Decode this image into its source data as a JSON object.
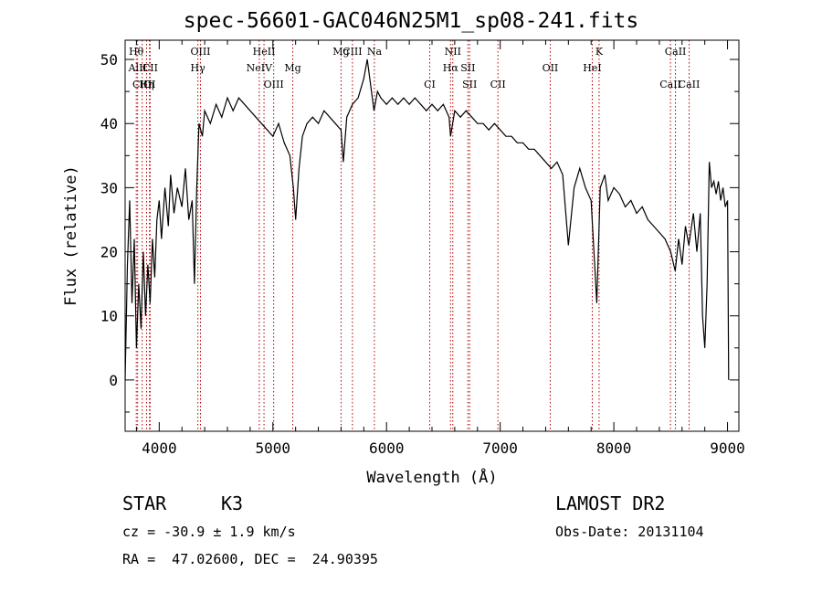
{
  "chart_data": {
    "type": "line",
    "title": "spec-56601-GAC046N25M1_sp08-241.fits",
    "xlabel": "Wavelength (Å)",
    "ylabel": "Flux (relative)",
    "xlim": [
      3700,
      9100
    ],
    "ylim": [
      -8,
      53
    ],
    "xticks": [
      4000,
      5000,
      6000,
      7000,
      8000,
      9000
    ],
    "yticks": [
      0,
      10,
      20,
      30,
      40,
      50
    ],
    "grid": false,
    "series": [
      {
        "points": [
          [
            3700,
            0
          ],
          [
            3720,
            18
          ],
          [
            3740,
            28
          ],
          [
            3760,
            12
          ],
          [
            3780,
            22
          ],
          [
            3800,
            5
          ],
          [
            3820,
            15
          ],
          [
            3840,
            8
          ],
          [
            3860,
            20
          ],
          [
            3880,
            10
          ],
          [
            3900,
            18
          ],
          [
            3920,
            12
          ],
          [
            3940,
            22
          ],
          [
            3960,
            16
          ],
          [
            3980,
            25
          ],
          [
            4000,
            28
          ],
          [
            4020,
            22
          ],
          [
            4050,
            30
          ],
          [
            4080,
            24
          ],
          [
            4100,
            32
          ],
          [
            4130,
            26
          ],
          [
            4160,
            30
          ],
          [
            4200,
            27
          ],
          [
            4230,
            33
          ],
          [
            4260,
            25
          ],
          [
            4290,
            28
          ],
          [
            4310,
            15
          ],
          [
            4330,
            30
          ],
          [
            4350,
            40
          ],
          [
            4380,
            38
          ],
          [
            4400,
            42
          ],
          [
            4450,
            40
          ],
          [
            4500,
            43
          ],
          [
            4550,
            41
          ],
          [
            4600,
            44
          ],
          [
            4650,
            42
          ],
          [
            4700,
            44
          ],
          [
            4750,
            43
          ],
          [
            4800,
            42
          ],
          [
            4850,
            41
          ],
          [
            4900,
            40
          ],
          [
            4950,
            39
          ],
          [
            5000,
            38
          ],
          [
            5050,
            40
          ],
          [
            5100,
            37
          ],
          [
            5150,
            35
          ],
          [
            5180,
            30
          ],
          [
            5200,
            25
          ],
          [
            5230,
            33
          ],
          [
            5260,
            38
          ],
          [
            5300,
            40
          ],
          [
            5350,
            41
          ],
          [
            5400,
            40
          ],
          [
            5450,
            42
          ],
          [
            5500,
            41
          ],
          [
            5550,
            40
          ],
          [
            5600,
            39
          ],
          [
            5620,
            34
          ],
          [
            5650,
            41
          ],
          [
            5700,
            43
          ],
          [
            5750,
            44
          ],
          [
            5800,
            47
          ],
          [
            5830,
            50
          ],
          [
            5860,
            46
          ],
          [
            5890,
            42
          ],
          [
            5920,
            45
          ],
          [
            5950,
            44
          ],
          [
            6000,
            43
          ],
          [
            6050,
            44
          ],
          [
            6100,
            43
          ],
          [
            6150,
            44
          ],
          [
            6200,
            43
          ],
          [
            6250,
            44
          ],
          [
            6300,
            43
          ],
          [
            6350,
            42
          ],
          [
            6400,
            43
          ],
          [
            6450,
            42
          ],
          [
            6500,
            43
          ],
          [
            6550,
            41
          ],
          [
            6563,
            38
          ],
          [
            6600,
            42
          ],
          [
            6650,
            41
          ],
          [
            6700,
            42
          ],
          [
            6750,
            41
          ],
          [
            6800,
            40
          ],
          [
            6850,
            40
          ],
          [
            6900,
            39
          ],
          [
            6950,
            40
          ],
          [
            7000,
            39
          ],
          [
            7050,
            38
          ],
          [
            7100,
            38
          ],
          [
            7150,
            37
          ],
          [
            7200,
            37
          ],
          [
            7250,
            36
          ],
          [
            7300,
            36
          ],
          [
            7350,
            35
          ],
          [
            7400,
            34
          ],
          [
            7450,
            33
          ],
          [
            7500,
            34
          ],
          [
            7550,
            32
          ],
          [
            7600,
            21
          ],
          [
            7650,
            30
          ],
          [
            7700,
            33
          ],
          [
            7750,
            30
          ],
          [
            7800,
            28
          ],
          [
            7850,
            12
          ],
          [
            7880,
            30
          ],
          [
            7920,
            32
          ],
          [
            7950,
            28
          ],
          [
            8000,
            30
          ],
          [
            8050,
            29
          ],
          [
            8100,
            27
          ],
          [
            8150,
            28
          ],
          [
            8200,
            26
          ],
          [
            8250,
            27
          ],
          [
            8300,
            25
          ],
          [
            8350,
            24
          ],
          [
            8400,
            23
          ],
          [
            8450,
            22
          ],
          [
            8500,
            20
          ],
          [
            8540,
            17
          ],
          [
            8570,
            22
          ],
          [
            8600,
            18
          ],
          [
            8630,
            24
          ],
          [
            8660,
            21
          ],
          [
            8700,
            26
          ],
          [
            8730,
            20
          ],
          [
            8760,
            26
          ],
          [
            8780,
            10
          ],
          [
            8800,
            5
          ],
          [
            8820,
            15
          ],
          [
            8840,
            34
          ],
          [
            8860,
            30
          ],
          [
            8880,
            31
          ],
          [
            8900,
            29
          ],
          [
            8920,
            31
          ],
          [
            8940,
            28
          ],
          [
            8960,
            30
          ],
          [
            8980,
            27
          ],
          [
            9000,
            28
          ],
          [
            9010,
            0
          ]
        ]
      }
    ],
    "lines": [
      {
        "label": "Hθ",
        "x": 3798,
        "row": 1
      },
      {
        "label": "AlII",
        "x": 3810,
        "row": 2
      },
      {
        "label": "CIII",
        "x": 3850,
        "row": 3
      },
      {
        "label": "Hη",
        "x": 3889,
        "row": 3
      },
      {
        "label": "OI",
        "x": 3914,
        "row": 3
      },
      {
        "label": "CII",
        "x": 3920,
        "row": 2
      },
      {
        "label": "OIII",
        "x": 4363,
        "row": 1
      },
      {
        "label": "Hγ",
        "x": 4340,
        "row": 2
      },
      {
        "label": "HeII",
        "x": 4922,
        "row": 1
      },
      {
        "label": "NeIV",
        "x": 4880,
        "row": 2
      },
      {
        "label": "OIII",
        "x": 5007,
        "row": 3
      },
      {
        "label": "Mg",
        "x": 5175,
        "row": 2
      },
      {
        "label": "Mg",
        "x": 5600,
        "row": 1
      },
      {
        "label": "CIII",
        "x": 5700,
        "row": 1
      },
      {
        "label": "Na",
        "x": 5893,
        "row": 1
      },
      {
        "label": "CI",
        "x": 6380,
        "row": 3
      },
      {
        "label": "NII",
        "x": 6583,
        "row": 1
      },
      {
        "label": "Hα",
        "x": 6563,
        "row": 2
      },
      {
        "label": "SII",
        "x": 6716,
        "row": 2
      },
      {
        "label": "SII",
        "x": 6731,
        "row": 3
      },
      {
        "label": "CII",
        "x": 6980,
        "row": 3
      },
      {
        "label": "OII",
        "x": 7440,
        "row": 2
      },
      {
        "label": "HeI",
        "x": 7810,
        "row": 2
      },
      {
        "label": "K",
        "x": 7870,
        "row": 1
      },
      {
        "label": "CaII",
        "x": 8542,
        "row": 1
      },
      {
        "label": "CaII",
        "x": 8498,
        "row": 3
      },
      {
        "label": "CaII",
        "x": 8662,
        "row": 3
      }
    ]
  },
  "footer": {
    "class_label": "STAR",
    "subclass_label": "K3",
    "survey": "LAMOST DR2",
    "redshift_text": "cz = -30.9 ± 1.9 km/s",
    "obs_date": "Obs-Date: 20131104",
    "coords": "RA =  47.02600, DEC =  24.90395"
  },
  "colors": {
    "line": "#000000",
    "marker_lines": "#b00000",
    "axis": "#000000"
  }
}
